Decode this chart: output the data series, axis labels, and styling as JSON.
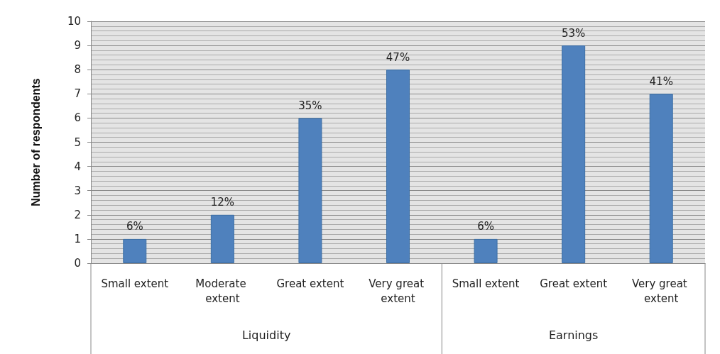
{
  "chart_data": {
    "type": "bar",
    "ylabel": "Number of respondents",
    "categories": [
      "Small extent",
      "Moderate extent",
      "Great extent",
      "Very great extent",
      "Small extent",
      "Great extent",
      "Very great extent"
    ],
    "values": [
      1,
      2,
      6,
      8,
      1,
      9,
      7
    ],
    "color": "#4f81bd",
    "ylim": [
      0,
      10
    ],
    "yticks": [
      0,
      1,
      2,
      3,
      4,
      5,
      6,
      7,
      8,
      9,
      10
    ],
    "grid": true,
    "annotations": [
      "Liquidity",
      "Earnings",
      "6%",
      "12%",
      "35%",
      "47%",
      "6%",
      "53%",
      "41%"
    ]
  }
}
